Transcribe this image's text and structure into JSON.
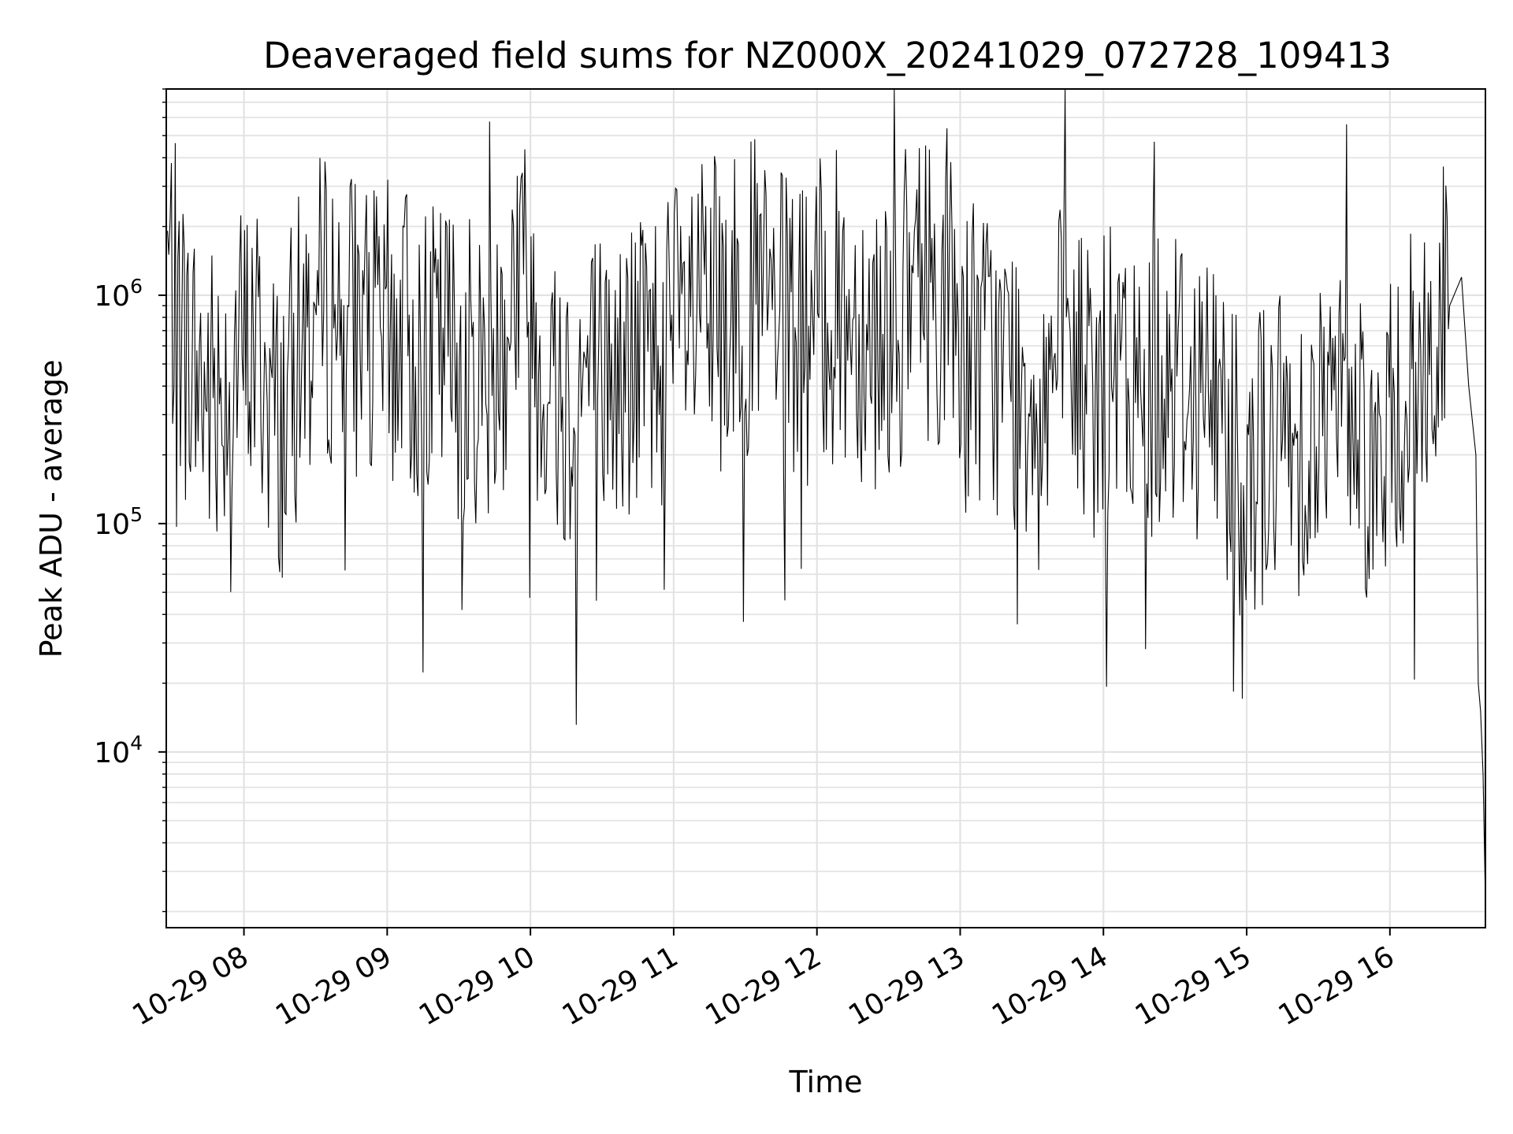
{
  "chart_data": {
    "type": "line",
    "title": "Deaveraged field sums for NZ000X_20241029_072728_109413",
    "xlabel": "Time",
    "ylabel": "Peak ADU - average",
    "y_scale": "log",
    "ylim": [
      1700,
      8000000
    ],
    "xlim": [
      "2024-10-29 07:27:28",
      "2024-10-29 16:40:00"
    ],
    "grid": true,
    "grid_minor": true,
    "line_color": "#000000",
    "x_ticks": [
      "10-29 08",
      "10-29 09",
      "10-29 10",
      "10-29 11",
      "10-29 12",
      "10-29 13",
      "10-29 14",
      "10-29 15",
      "10-29 16"
    ],
    "x_tick_values": [
      "2024-10-29 08:00",
      "2024-10-29 09:00",
      "2024-10-29 10:00",
      "2024-10-29 11:00",
      "2024-10-29 12:00",
      "2024-10-29 13:00",
      "2024-10-29 14:00",
      "2024-10-29 15:00",
      "2024-10-29 16:00"
    ],
    "y_ticks": [
      {
        "base": "10",
        "exp": "4",
        "value": 10000
      },
      {
        "base": "10",
        "exp": "5",
        "value": 100000
      },
      {
        "base": "10",
        "exp": "6",
        "value": 1000000
      }
    ],
    "series": [
      {
        "x": [
          "2024-10-29 07:28",
          "2024-10-29 07:35",
          "2024-10-29 07:45",
          "2024-10-29 07:55",
          "2024-10-29 08:05",
          "2024-10-29 08:15",
          "2024-10-29 08:25",
          "2024-10-29 08:35",
          "2024-10-29 08:45",
          "2024-10-29 08:55",
          "2024-10-29 09:05",
          "2024-10-29 09:15",
          "2024-10-29 09:25",
          "2024-10-29 09:35",
          "2024-10-29 09:45",
          "2024-10-29 09:55",
          "2024-10-29 10:05",
          "2024-10-29 10:15",
          "2024-10-29 10:25",
          "2024-10-29 10:35",
          "2024-10-29 10:45",
          "2024-10-29 10:55",
          "2024-10-29 11:05",
          "2024-10-29 11:15",
          "2024-10-29 11:25",
          "2024-10-29 11:35",
          "2024-10-29 11:45",
          "2024-10-29 11:55",
          "2024-10-29 12:05",
          "2024-10-29 12:15",
          "2024-10-29 12:25",
          "2024-10-29 12:35",
          "2024-10-29 12:45",
          "2024-10-29 12:55",
          "2024-10-29 13:05",
          "2024-10-29 13:15",
          "2024-10-29 13:25",
          "2024-10-29 13:35",
          "2024-10-29 13:45",
          "2024-10-29 13:55",
          "2024-10-29 14:05",
          "2024-10-29 14:15",
          "2024-10-29 14:25",
          "2024-10-29 14:35",
          "2024-10-29 14:45",
          "2024-10-29 14:55",
          "2024-10-29 15:05",
          "2024-10-29 15:15",
          "2024-10-29 15:25",
          "2024-10-29 15:35",
          "2024-10-29 15:45",
          "2024-10-29 15:55",
          "2024-10-29 16:05",
          "2024-10-29 16:15",
          "2024-10-29 16:25",
          "2024-10-29 16:30",
          "2024-10-29 16:33",
          "2024-10-29 16:36",
          "2024-10-29 16:37",
          "2024-10-29 16:38",
          "2024-10-29 16:39",
          "2024-10-29 16:40"
        ],
        "values": [
          1400000,
          600000,
          350000,
          500000,
          600000,
          250000,
          700000,
          900000,
          800000,
          600000,
          700000,
          500000,
          600000,
          450000,
          500000,
          1500000,
          500000,
          350000,
          450000,
          400000,
          500000,
          600000,
          700000,
          800000,
          900000,
          1000000,
          700000,
          650000,
          900000,
          800000,
          700000,
          800000,
          1200000,
          900000,
          600000,
          500000,
          400000,
          450000,
          500000,
          400000,
          400000,
          350000,
          500000,
          450000,
          350000,
          250000,
          200000,
          220000,
          250000,
          300000,
          350000,
          150000,
          350000,
          450000,
          900000,
          1200000,
          400000,
          200000,
          20000,
          15000,
          8000,
          2200
        ]
      }
    ]
  }
}
